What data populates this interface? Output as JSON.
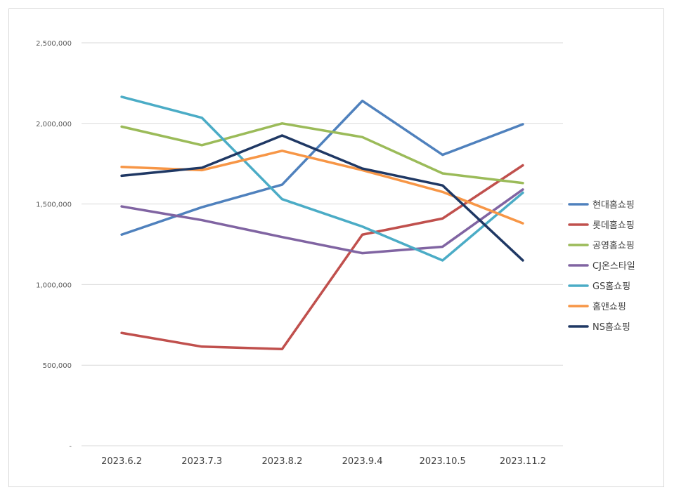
{
  "chart_data": {
    "type": "line",
    "title": "",
    "xlabel": "",
    "ylabel": "",
    "categories": [
      "2023.6.2",
      "2023.7.3",
      "2023.8.2",
      "2023.9.4",
      "2023.10.5",
      "2023.11.2"
    ],
    "ylim": [
      0,
      2500000
    ],
    "yticks": [
      0,
      500000,
      1000000,
      1500000,
      2000000,
      2500000
    ],
    "ytick_labels": [
      "-",
      "500,000",
      "1,000,000",
      "1,500,000",
      "2,000,000",
      "2,500,000"
    ],
    "grid": true,
    "legend_position": "right",
    "series": [
      {
        "name": "현대홈쇼핑",
        "color": "#4f81bd",
        "values": [
          1310000,
          1480000,
          1620000,
          2140000,
          1805000,
          1995000
        ]
      },
      {
        "name": "롯데홈쇼핑",
        "color": "#c0504d",
        "values": [
          700000,
          615000,
          600000,
          1310000,
          1410000,
          1740000
        ]
      },
      {
        "name": "공영홈쇼핑",
        "color": "#9bbb59",
        "values": [
          1980000,
          1865000,
          2000000,
          1915000,
          1690000,
          1630000
        ]
      },
      {
        "name": "CJ온스타일",
        "color": "#8064a2",
        "values": [
          1485000,
          1400000,
          1295000,
          1195000,
          1235000,
          1590000
        ]
      },
      {
        "name": "GS홈쇼핑",
        "color": "#4bacc6",
        "values": [
          2165000,
          2035000,
          1530000,
          1360000,
          1150000,
          1570000
        ]
      },
      {
        "name": "홈앤쇼핑",
        "color": "#f79646",
        "values": [
          1730000,
          1710000,
          1830000,
          1710000,
          1575000,
          1380000
        ]
      },
      {
        "name": "NS홈쇼핑",
        "color": "#1f3864",
        "values": [
          1675000,
          1725000,
          1925000,
          1720000,
          1615000,
          1150000
        ]
      }
    ]
  }
}
